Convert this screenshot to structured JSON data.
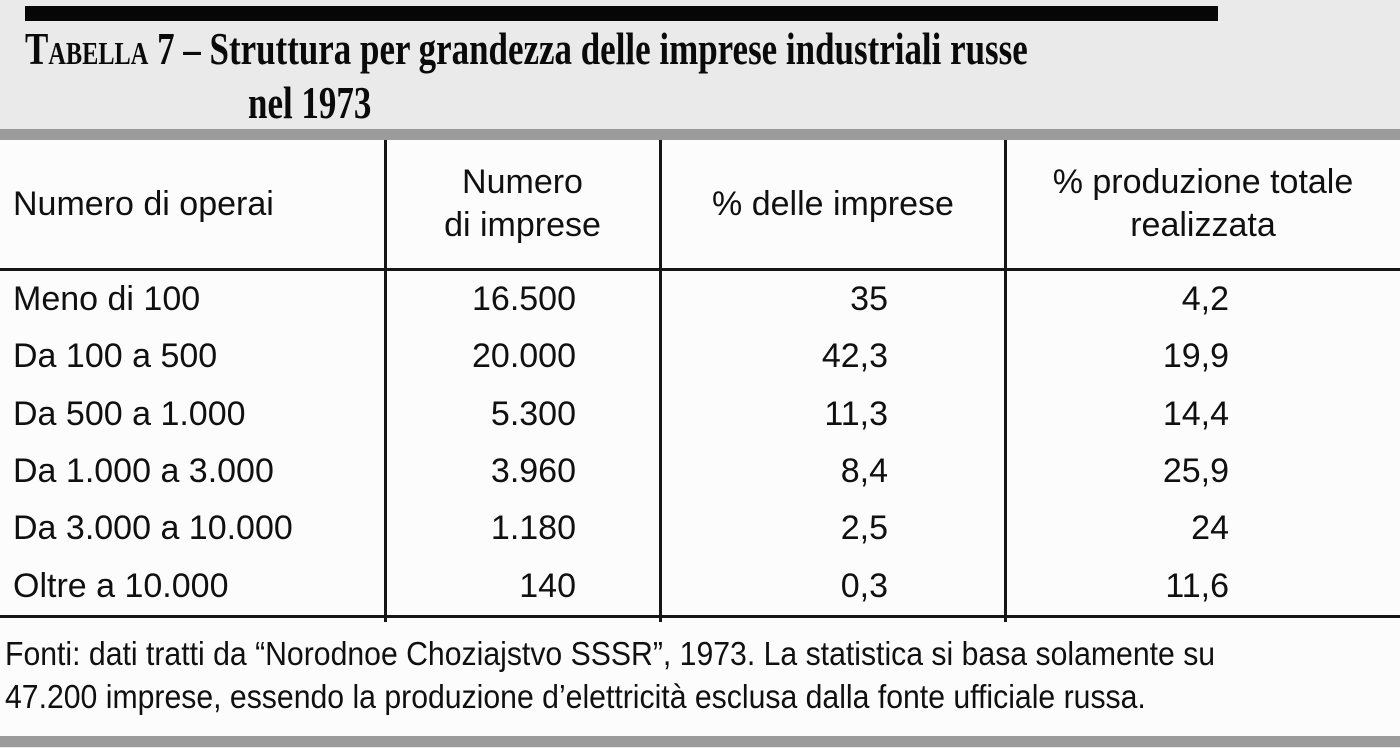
{
  "page": {
    "title": {
      "label_smallcaps": "Tabella",
      "after_label": " 7 – Struttura per grandezza delle imprese industriali russe",
      "line2": "nel 1973"
    },
    "table": {
      "headers": [
        "Numero di operai",
        "Numero\ndi imprese",
        "% delle imprese",
        "% produzione totale\nrealizzata"
      ],
      "rows": [
        [
          "Meno di 100",
          "16.500",
          "35",
          "4,2"
        ],
        [
          "Da 100 a 500",
          "20.000",
          "42,3",
          "19,9"
        ],
        [
          "Da 500 a 1.000",
          "5.300",
          "11,3",
          "14,4"
        ],
        [
          "Da 1.000 a 3.000",
          "3.960",
          "8,4",
          "25,9"
        ],
        [
          "Da 3.000 a 10.000",
          "1.180",
          "2,5",
          "24"
        ],
        [
          "Oltre a 10.000",
          "140",
          "0,3",
          "11,6"
        ]
      ]
    },
    "footnote": {
      "line1": "Fonti: dati tratti da “Norodnoe Choziajstvo SSSR”, 1973. La statistica si basa solamente su",
      "line2": "47.200 imprese, essendo la produzione d’elettricità esclusa dalla fonte ufficiale russa."
    },
    "colors": {
      "page_background": "#e9eae9",
      "paper_background": "#fcfcfc",
      "bar_black": "#060606",
      "rule_gray": "#9b9b9b",
      "text": "#101010"
    }
  }
}
